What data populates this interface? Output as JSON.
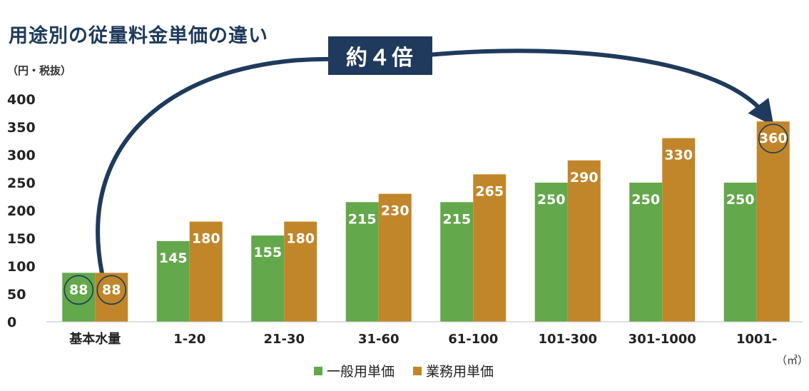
{
  "title": "用途別の従量料金単価の違い",
  "y_unit": "（円・税抜）",
  "x_unit": "（㎥）",
  "callout": "約４倍",
  "colors": {
    "general": "#63a84a",
    "business": "#c1862a",
    "callout": "#1f3a5c",
    "arrow": "#1f3a5c",
    "circle": "#1f3a5c"
  },
  "chart_data": {
    "type": "bar",
    "categories": [
      "基本水量",
      "1-20",
      "21-30",
      "31-60",
      "61-100",
      "101-300",
      "301-1000",
      "1001-"
    ],
    "series": [
      {
        "name": "一般用単価",
        "values": [
          88,
          145,
          155,
          215,
          215,
          250,
          250,
          250
        ]
      },
      {
        "name": "業務用単価",
        "values": [
          88,
          180,
          180,
          230,
          265,
          290,
          330,
          360
        ]
      }
    ],
    "ylim": [
      0,
      400
    ],
    "yticks": [
      0,
      50,
      100,
      150,
      200,
      250,
      300,
      350,
      400
    ],
    "grid": false,
    "legend": "bottom",
    "data_labels": true,
    "annotation": {
      "text": "約４倍",
      "from_category": "基本水量",
      "to_category": "1001-",
      "circled_values": [
        "88",
        "88",
        "360"
      ]
    }
  }
}
